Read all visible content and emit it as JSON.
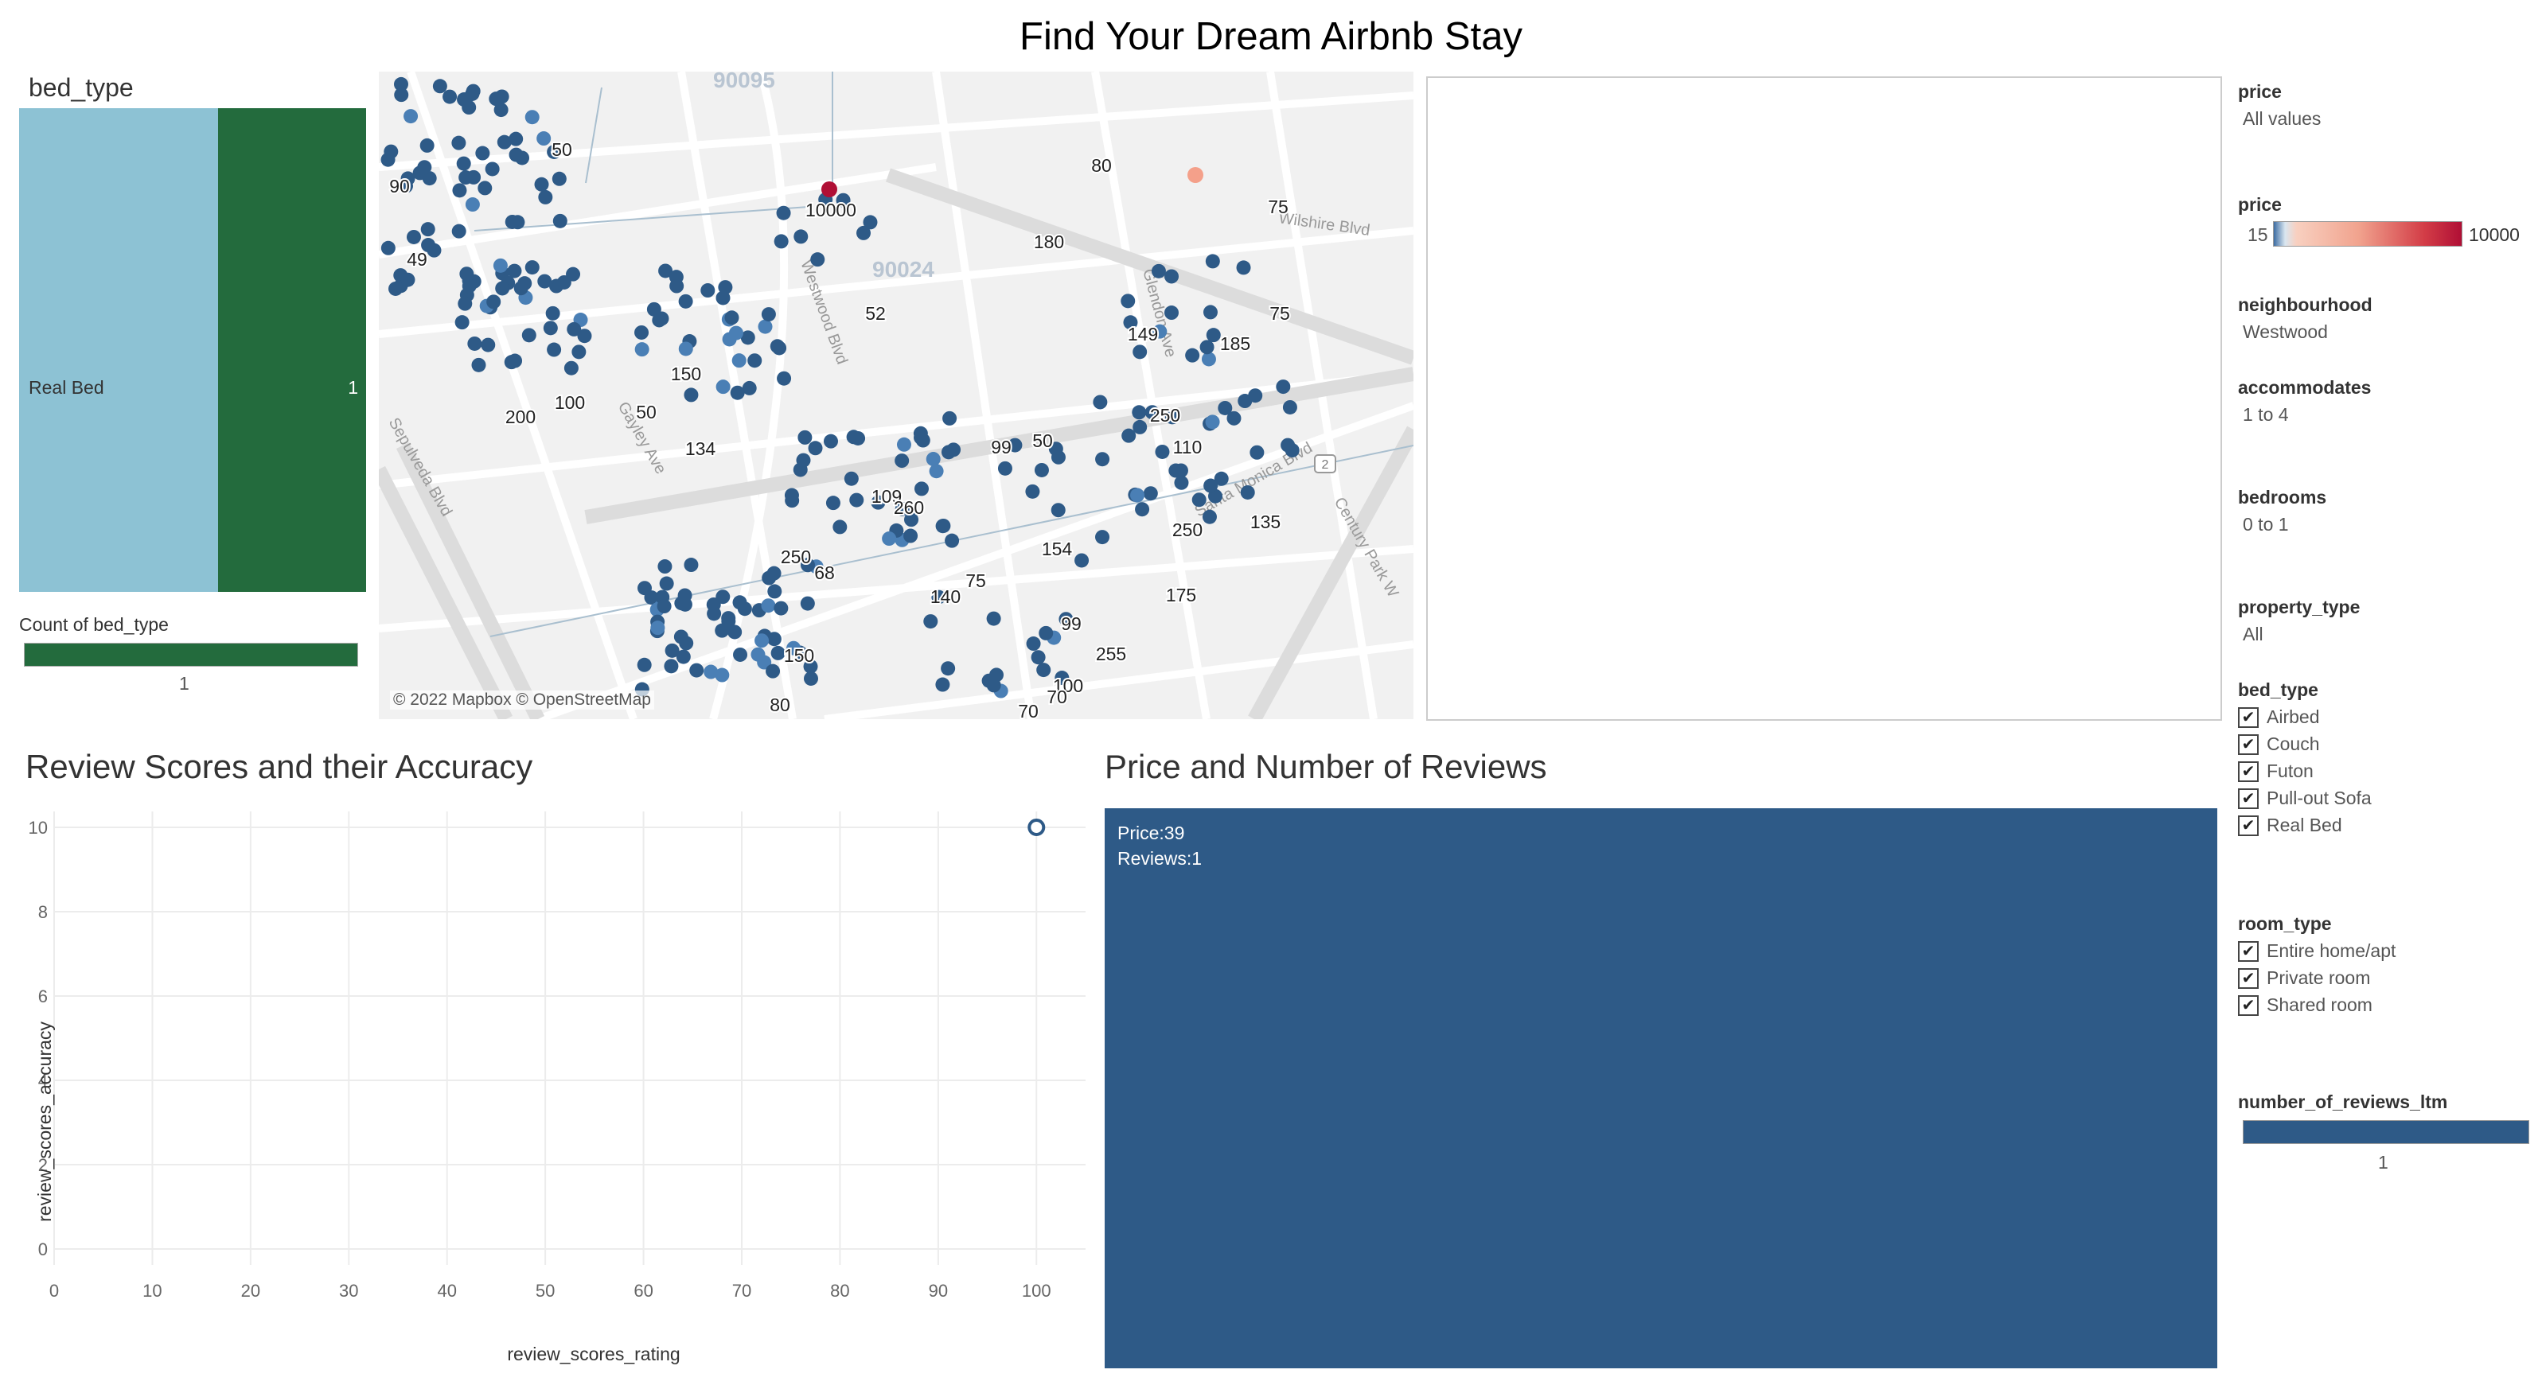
{
  "dashboard": {
    "title": "Find Your Dream Airbnb Stay"
  },
  "bed_type_panel": {
    "title": "bed_type",
    "category_label": "Real Bed",
    "value_label": "1",
    "legend_title": "Count of bed_type",
    "legend_value": "1",
    "colors": {
      "left": "#8dc2d4",
      "right": "#236b3d"
    }
  },
  "map": {
    "attribution": "© 2022 Mapbox © OpenStreetMap",
    "zip_labels": [
      "90095",
      "90024"
    ],
    "street_labels": [
      "Wilshire Blvd",
      "Sepulveda Blvd",
      "Gayley Ave",
      "Westwood Blvd",
      "Glendon Ave",
      "Santa Monica Blvd",
      "Century Park W"
    ],
    "highway_shield": "2",
    "price_labels": [
      "50",
      "90",
      "49",
      "10000",
      "80",
      "75",
      "180",
      "52",
      "149",
      "185",
      "75",
      "150",
      "100",
      "200",
      "50",
      "134",
      "99",
      "50",
      "250",
      "110",
      "109",
      "260",
      "250",
      "135",
      "68",
      "154",
      "250",
      "75",
      "140",
      "175",
      "99",
      "255",
      "150",
      "100",
      "80",
      "70",
      "70"
    ],
    "colors": {
      "marker": "#2e5a87",
      "marker_light": "#4a7fb5",
      "marker_high": "#b00f35",
      "marker_mid": "#f4a08a"
    }
  },
  "review_chart": {
    "title": "Review Scores and their Accuracy"
  },
  "price_chart": {
    "title": "Price and Number of Reviews",
    "tooltip_price": "Price:39",
    "tooltip_reviews": "Reviews:1",
    "color": "#2e5a87"
  },
  "chart_data": [
    {
      "type": "scatter",
      "title": "Review Scores and their Accuracy",
      "xlabel": "review_scores_rating",
      "ylabel": "review_scores_accuracy",
      "xlim": [
        0,
        105
      ],
      "ylim": [
        0,
        10
      ],
      "x_ticks": [
        0,
        10,
        20,
        30,
        40,
        50,
        60,
        70,
        80,
        90,
        100
      ],
      "y_ticks": [
        0,
        2,
        4,
        6,
        8,
        10
      ],
      "points": [
        {
          "x": 100,
          "y": 10
        }
      ],
      "grid": true
    },
    {
      "type": "table",
      "title": "Price and Number of Reviews",
      "rows": [
        {
          "price": 39,
          "reviews": 1
        }
      ]
    }
  ],
  "filters": {
    "price_title": "price",
    "price_value": "All values",
    "price_legend_title": "price",
    "price_legend_min": "15",
    "price_legend_max": "10000",
    "neighbourhood_title": "neighbourhood",
    "neighbourhood_value": "Westwood",
    "accommodates_title": "accommodates",
    "accommodates_value": "1 to 4",
    "bedrooms_title": "bedrooms",
    "bedrooms_value": "0 to 1",
    "property_type_title": "property_type",
    "property_type_value": "All",
    "bed_type_title": "bed_type",
    "bed_type_options": [
      "Airbed",
      "Couch",
      "Futon",
      "Pull-out Sofa",
      "Real Bed"
    ],
    "room_type_title": "room_type",
    "room_type_options": [
      "Entire home/apt",
      "Private room",
      "Shared room"
    ],
    "reviews_ltm_title": "number_of_reviews_ltm",
    "reviews_ltm_value": "1",
    "check_glyph": "✔"
  }
}
